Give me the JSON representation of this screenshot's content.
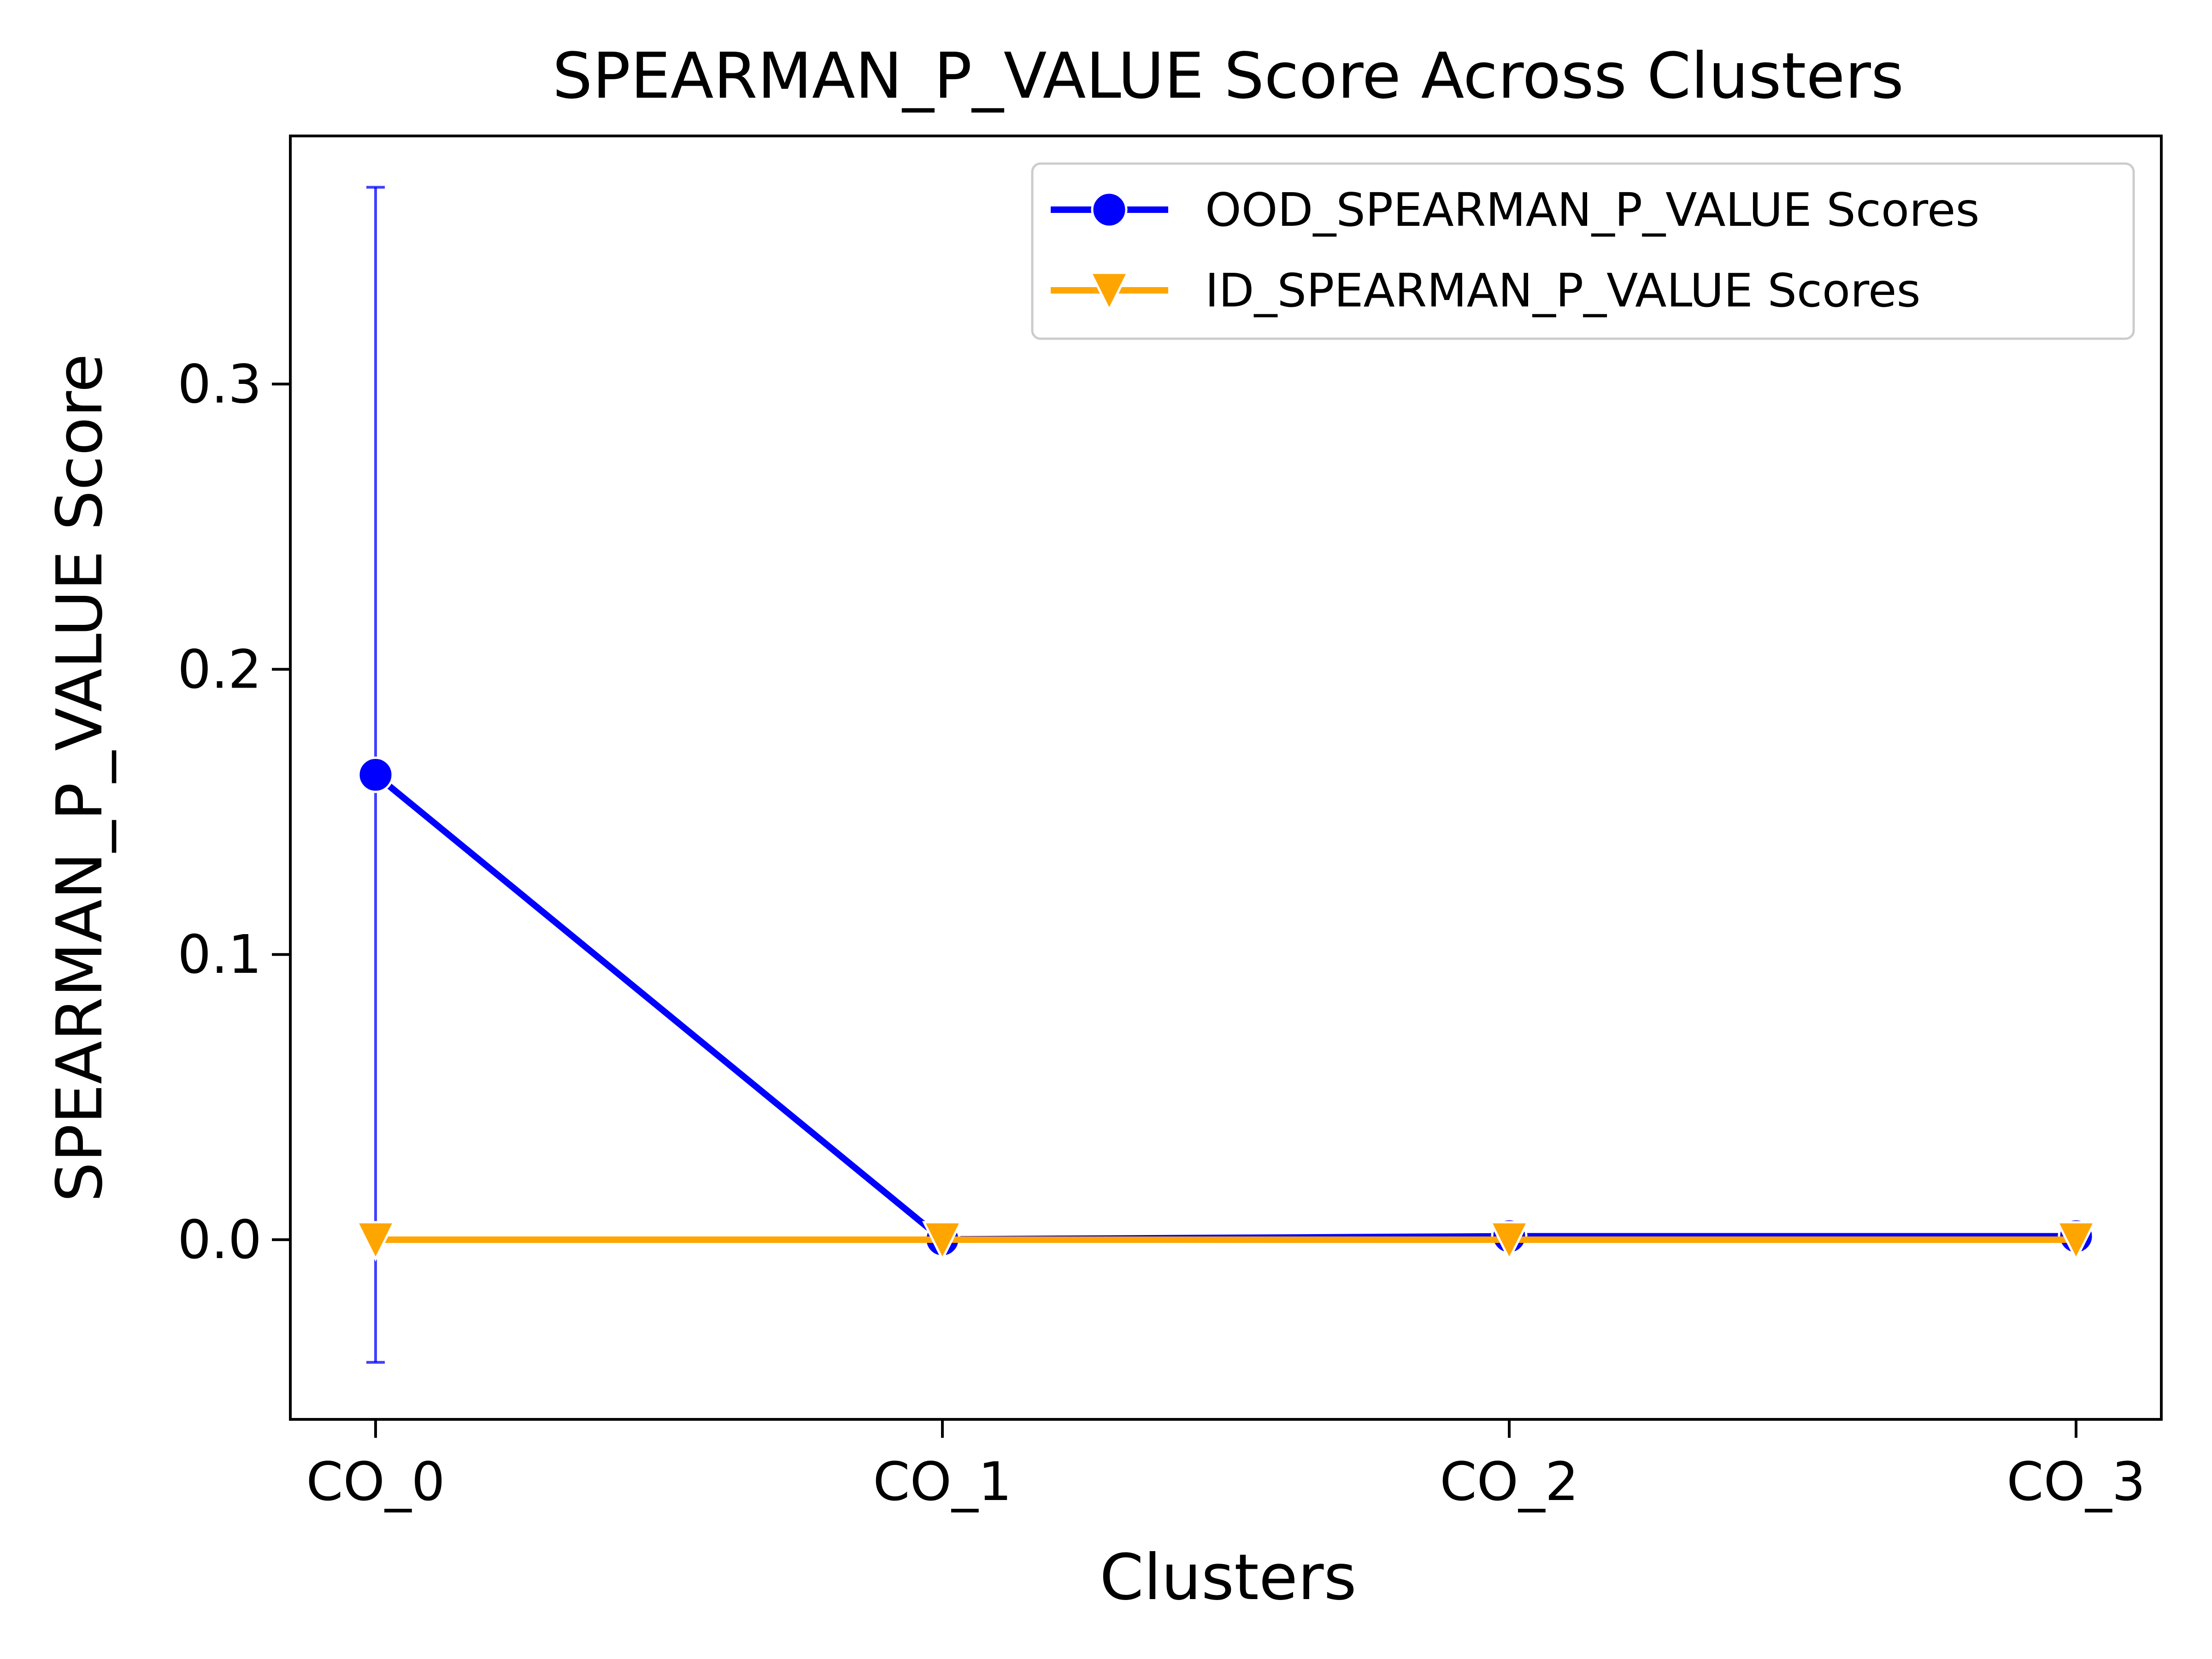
{
  "chart_data": {
    "type": "line",
    "title": "SPEARMAN_P_VALUE Score Across Clusters",
    "xlabel": "Clusters",
    "ylabel": "SPEARMAN_P_VALUE Score",
    "categories": [
      "CO_0",
      "CO_1",
      "CO_2",
      "CO_3"
    ],
    "ylim": [
      -0.063,
      0.387
    ],
    "yticks": [
      0.0,
      0.1,
      0.2,
      0.3
    ],
    "ytick_labels": [
      "0.0",
      "0.1",
      "0.2",
      "0.3"
    ],
    "grid": false,
    "legend_position": "top-right",
    "series": [
      {
        "name": "OOD_SPEARMAN_P_VALUE Scores",
        "color": "#0000ff",
        "marker": "circle",
        "values": [
          0.163,
          0.0001,
          0.0012,
          0.0012
        ],
        "error": [
          0.206,
          0.0,
          0.0,
          0.0
        ]
      },
      {
        "name": "ID_SPEARMAN_P_VALUE Scores",
        "color": "#ffa500",
        "marker": "triangle-down",
        "values": [
          0.0,
          0.0,
          0.0,
          0.0
        ]
      }
    ]
  }
}
